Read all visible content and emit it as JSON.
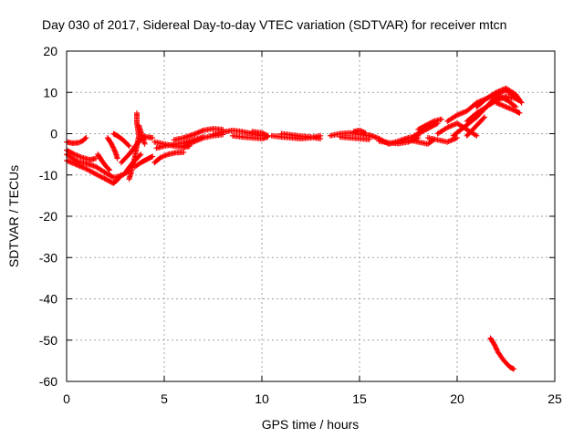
{
  "chart_data": {
    "type": "scatter",
    "title": "Day 030 of 2017, Sidereal Day-to-day VTEC variation (SDTVAR) for receiver mtcn",
    "xlabel": "GPS time / hours",
    "ylabel": "SDTVAR / TECUs",
    "xlim": [
      0,
      25
    ],
    "ylim": [
      -60,
      20
    ],
    "x_ticks": [
      0,
      5,
      10,
      15,
      20,
      25
    ],
    "y_ticks": [
      -60,
      -50,
      -40,
      -30,
      -20,
      -10,
      0,
      10,
      20
    ],
    "x_tick_labels": [
      "0",
      "5",
      "10",
      "15",
      "20",
      "25"
    ],
    "y_tick_labels": [
      "-60",
      "-50",
      "-40",
      "-30",
      "-20",
      "-10",
      "0",
      "10",
      "20"
    ],
    "grid": true,
    "marker": "plus",
    "series_color": "#ff0000",
    "series": [
      {
        "name": "PRN tracks",
        "tracks": [
          [
            [
              0.0,
              -2.0
            ],
            [
              0.3,
              -2.3
            ],
            [
              0.6,
              -2.2
            ],
            [
              0.8,
              -1.8
            ],
            [
              1.0,
              -1.0
            ]
          ],
          [
            [
              0.0,
              -5.0
            ],
            [
              0.3,
              -6.0
            ],
            [
              0.6,
              -6.8
            ],
            [
              1.0,
              -7.2
            ],
            [
              1.5,
              -8.0
            ],
            [
              2.0,
              -9.5
            ],
            [
              2.4,
              -10.6
            ],
            [
              2.8,
              -10.2
            ],
            [
              3.2,
              -9.0
            ]
          ],
          [
            [
              0.0,
              -6.5
            ],
            [
              0.5,
              -7.5
            ],
            [
              1.0,
              -8.5
            ],
            [
              1.5,
              -9.8
            ],
            [
              2.0,
              -11.0
            ],
            [
              2.4,
              -12.0
            ],
            [
              2.6,
              -11.2
            ],
            [
              2.8,
              -10.0
            ]
          ],
          [
            [
              0.0,
              -4.0
            ],
            [
              0.4,
              -5.0
            ],
            [
              0.8,
              -5.8
            ],
            [
              1.2,
              -6.3
            ],
            [
              1.5,
              -6.0
            ]
          ],
          [
            [
              1.6,
              -5.0
            ],
            [
              1.8,
              -6.5
            ],
            [
              2.0,
              -7.8
            ],
            [
              2.2,
              -8.8
            ]
          ],
          [
            [
              2.1,
              -1.0
            ],
            [
              2.3,
              -2.5
            ],
            [
              2.5,
              -4.5
            ],
            [
              2.6,
              -6.0
            ]
          ],
          [
            [
              2.4,
              0.0
            ],
            [
              2.6,
              -0.5
            ],
            [
              2.8,
              -1.2
            ],
            [
              3.0,
              -2.0
            ],
            [
              3.2,
              -3.0
            ]
          ],
          [
            [
              2.8,
              -7.0
            ],
            [
              3.0,
              -6.0
            ],
            [
              3.2,
              -5.0
            ],
            [
              3.4,
              -3.8
            ],
            [
              3.6,
              -2.5
            ],
            [
              3.8,
              -1.5
            ],
            [
              4.0,
              -0.7
            ]
          ],
          [
            [
              3.0,
              -9.5
            ],
            [
              3.2,
              -8.2
            ],
            [
              3.4,
              -7.0
            ],
            [
              3.6,
              -6.0
            ],
            [
              3.8,
              -5.0
            ]
          ],
          [
            [
              3.2,
              -11.0
            ],
            [
              3.3,
              -9.5
            ],
            [
              3.4,
              -7.5
            ],
            [
              3.5,
              -5.5
            ],
            [
              3.6,
              -3.0
            ],
            [
              3.7,
              -0.5
            ],
            [
              3.6,
              2.5
            ],
            [
              3.6,
              5.0
            ]
          ],
          [
            [
              3.5,
              -8.0
            ],
            [
              3.8,
              -7.0
            ],
            [
              4.0,
              -6.5
            ],
            [
              4.2,
              -6.0
            ],
            [
              4.4,
              -5.5
            ]
          ],
          [
            [
              3.7,
              2.0
            ],
            [
              3.8,
              0.5
            ],
            [
              3.9,
              -1.0
            ],
            [
              4.0,
              -2.5
            ]
          ],
          [
            [
              3.9,
              -1.0
            ],
            [
              4.1,
              -0.8
            ],
            [
              4.4,
              -1.0
            ]
          ],
          [
            [
              4.5,
              -7.0
            ],
            [
              4.8,
              -5.8
            ],
            [
              5.2,
              -5.0
            ],
            [
              5.6,
              -4.6
            ],
            [
              6.0,
              -4.5
            ]
          ],
          [
            [
              4.6,
              -3.5
            ],
            [
              5.0,
              -3.0
            ],
            [
              5.5,
              -2.6
            ],
            [
              6.0,
              -2.2
            ],
            [
              6.5,
              -1.5
            ],
            [
              7.0,
              -0.8
            ]
          ],
          [
            [
              4.5,
              -2.0
            ],
            [
              5.0,
              -2.5
            ],
            [
              5.5,
              -3.0
            ],
            [
              6.0,
              -3.3
            ],
            [
              6.3,
              -3.0
            ]
          ],
          [
            [
              5.5,
              -1.5
            ],
            [
              6.0,
              -1.0
            ],
            [
              6.5,
              -0.2
            ],
            [
              7.0,
              0.8
            ],
            [
              7.5,
              1.2
            ],
            [
              8.0,
              1.0
            ]
          ],
          [
            [
              6.0,
              -3.0
            ],
            [
              6.5,
              -2.0
            ],
            [
              7.0,
              -1.0
            ],
            [
              7.5,
              -0.5
            ],
            [
              8.0,
              -0.2
            ]
          ],
          [
            [
              7.5,
              -0.2
            ],
            [
              8.0,
              0.4
            ],
            [
              8.5,
              0.8
            ],
            [
              9.0,
              0.5
            ],
            [
              9.5,
              0.0
            ],
            [
              10.0,
              -0.5
            ]
          ],
          [
            [
              8.5,
              -0.5
            ],
            [
              9.0,
              -0.8
            ],
            [
              9.5,
              -1.0
            ],
            [
              10.0,
              -1.2
            ],
            [
              10.3,
              -0.8
            ]
          ],
          [
            [
              9.5,
              0.5
            ],
            [
              10.0,
              0.2
            ],
            [
              10.3,
              -0.5
            ]
          ],
          [
            [
              10.5,
              -0.5
            ],
            [
              11.0,
              -0.8
            ],
            [
              11.5,
              -1.0
            ],
            [
              12.0,
              -1.2
            ],
            [
              12.5,
              -1.0
            ],
            [
              13.0,
              -0.5
            ]
          ],
          [
            [
              11.0,
              0.0
            ],
            [
              11.5,
              -0.3
            ],
            [
              12.0,
              -0.6
            ],
            [
              12.5,
              -0.8
            ],
            [
              13.0,
              -1.2
            ]
          ],
          [
            [
              13.5,
              -0.5
            ],
            [
              14.0,
              0.0
            ],
            [
              14.5,
              0.2
            ],
            [
              15.0,
              -0.2
            ],
            [
              15.5,
              -0.5
            ]
          ],
          [
            [
              14.0,
              -0.8
            ],
            [
              14.5,
              -1.0
            ],
            [
              15.0,
              -1.2
            ],
            [
              15.5,
              -1.4
            ]
          ],
          [
            [
              14.7,
              0.5
            ],
            [
              15.0,
              0.8
            ],
            [
              15.3,
              0.2
            ]
          ],
          [
            [
              15.5,
              -0.3
            ],
            [
              16.0,
              -1.2
            ],
            [
              16.5,
              -2.5
            ],
            [
              17.0,
              -1.8
            ],
            [
              17.5,
              -1.0
            ],
            [
              18.0,
              -0.5
            ]
          ],
          [
            [
              16.0,
              -1.8
            ],
            [
              16.5,
              -2.2
            ],
            [
              17.0,
              -2.4
            ],
            [
              17.5,
              -2.0
            ],
            [
              18.0,
              -1.0
            ]
          ],
          [
            [
              17.5,
              -1.5
            ],
            [
              18.0,
              -2.0
            ],
            [
              18.5,
              -2.5
            ],
            [
              18.8,
              -1.5
            ]
          ],
          [
            [
              17.8,
              -0.5
            ],
            [
              18.2,
              0.5
            ],
            [
              18.6,
              1.5
            ],
            [
              19.0,
              2.5
            ]
          ],
          [
            [
              18.0,
              1.0
            ],
            [
              18.4,
              2.0
            ],
            [
              18.8,
              3.0
            ],
            [
              19.2,
              3.5
            ]
          ],
          [
            [
              18.5,
              -1.0
            ],
            [
              19.0,
              -1.5
            ],
            [
              19.5,
              -2.0
            ],
            [
              20.0,
              -1.0
            ]
          ],
          [
            [
              19.0,
              0.0
            ],
            [
              19.5,
              1.5
            ],
            [
              20.0,
              2.5
            ],
            [
              20.5,
              1.0
            ],
            [
              21.0,
              -0.5
            ]
          ],
          [
            [
              19.5,
              3.0
            ],
            [
              20.0,
              4.5
            ],
            [
              20.5,
              5.5
            ],
            [
              21.0,
              7.5
            ],
            [
              21.5,
              8.5
            ],
            [
              22.0,
              9.5
            ],
            [
              22.5,
              10.5
            ],
            [
              23.0,
              9.0
            ]
          ],
          [
            [
              19.8,
              -0.5
            ],
            [
              20.2,
              1.0
            ],
            [
              20.6,
              2.5
            ],
            [
              21.0,
              4.0
            ],
            [
              21.4,
              6.0
            ],
            [
              21.8,
              8.0
            ],
            [
              22.2,
              9.0
            ],
            [
              22.6,
              8.0
            ],
            [
              23.0,
              6.5
            ]
          ],
          [
            [
              20.5,
              3.0
            ],
            [
              21.0,
              5.0
            ],
            [
              21.5,
              6.5
            ],
            [
              22.0,
              8.0
            ],
            [
              22.5,
              9.0
            ],
            [
              23.0,
              8.5
            ],
            [
              23.2,
              8.0
            ]
          ],
          [
            [
              20.5,
              -0.5
            ],
            [
              20.8,
              1.0
            ],
            [
              21.1,
              2.5
            ],
            [
              21.4,
              4.0
            ]
          ],
          [
            [
              21.0,
              6.5
            ],
            [
              21.5,
              8.5
            ],
            [
              22.0,
              10.0
            ],
            [
              22.5,
              11.0
            ],
            [
              23.0,
              9.5
            ],
            [
              23.3,
              7.5
            ]
          ],
          [
            [
              22.0,
              7.5
            ],
            [
              22.5,
              6.5
            ],
            [
              23.0,
              5.5
            ],
            [
              23.2,
              5.0
            ]
          ],
          [
            [
              21.7,
              -49.5
            ],
            [
              21.9,
              -51.0
            ],
            [
              22.1,
              -53.0
            ],
            [
              22.4,
              -55.0
            ],
            [
              22.7,
              -56.5
            ],
            [
              22.9,
              -57.0
            ]
          ]
        ]
      }
    ]
  }
}
